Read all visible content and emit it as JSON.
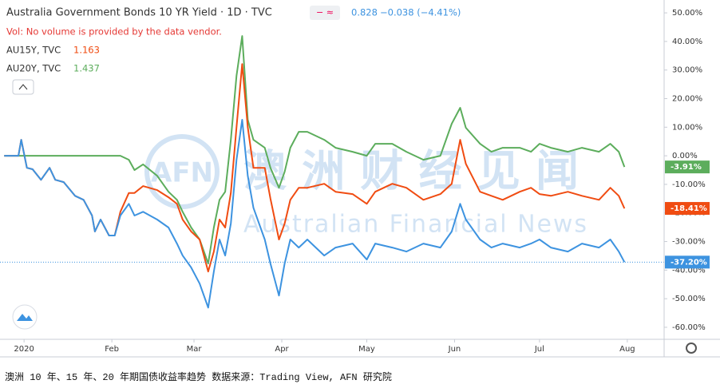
{
  "chart_data": {
    "type": "line",
    "x": [
      -6,
      -1,
      0,
      2,
      4,
      7,
      10,
      12,
      15,
      19,
      22,
      25,
      26,
      28,
      31,
      33,
      35,
      38,
      40,
      43,
      48,
      52,
      55,
      57,
      60,
      63,
      66,
      68,
      70,
      72,
      74,
      76,
      78,
      80,
      82,
      86,
      88,
      91,
      93,
      95,
      98,
      101,
      107,
      111,
      117,
      122,
      125,
      131,
      136,
      142,
      148,
      152,
      155,
      157,
      162,
      166,
      170,
      176,
      180,
      183,
      187,
      193,
      198,
      204,
      208,
      211,
      213
    ],
    "xlim": [
      -7.5,
      227
    ],
    "xticks": [
      {
        "value": 1,
        "label": "2020"
      },
      {
        "value": 32,
        "label": "Feb"
      },
      {
        "value": 61,
        "label": "Mar"
      },
      {
        "value": 92,
        "label": "Apr"
      },
      {
        "value": 122,
        "label": "May"
      },
      {
        "value": 153,
        "label": "Jun"
      },
      {
        "value": 183,
        "label": "Jul"
      },
      {
        "value": 214,
        "label": "Aug"
      }
    ],
    "ylim": [
      -64.2,
      54.5
    ],
    "yticks": [
      {
        "value": 50,
        "label": "50.00%"
      },
      {
        "value": 40,
        "label": "40.00%"
      },
      {
        "value": 30,
        "label": "30.00%"
      },
      {
        "value": 20,
        "label": "20.00%"
      },
      {
        "value": 10,
        "label": "10.00%"
      },
      {
        "value": 0,
        "label": "0.00%"
      },
      {
        "value": -10,
        "label": "-10.00%"
      },
      {
        "value": -20,
        "label": "-20.00%"
      },
      {
        "value": -30,
        "label": "-30.00%"
      },
      {
        "value": -40,
        "label": "-40.00%"
      },
      {
        "value": -50,
        "label": "-50.00%"
      },
      {
        "value": -60,
        "label": "-60.00%"
      }
    ],
    "grid": false,
    "note": "Vol: No volume is provided by the data vendor.",
    "series": [
      {
        "name": "Australia Government Bonds 10 YR Yield · 1D · TVC",
        "header_value": "0.828",
        "change": "−0.038 (−4.41%)",
        "color": "#3d93e0",
        "values": [
          0,
          0,
          5.6,
          -4.2,
          -4.7,
          -8.4,
          -4.2,
          -8.4,
          -9.2,
          -14.0,
          -15.4,
          -20.9,
          -26.5,
          -22.3,
          -27.9,
          -27.9,
          -20.9,
          -16.8,
          -20.9,
          -19.6,
          -22.3,
          -25.1,
          -30.7,
          -34.9,
          -39.1,
          -44.7,
          -53.1,
          -40.5,
          -29.3,
          -34.9,
          -23.7,
          -1.4,
          12.6,
          -7.0,
          -18.2,
          -29.3,
          -37.7,
          -48.9,
          -37.7,
          -29.3,
          -32.1,
          -29.3,
          -34.9,
          -32.1,
          -30.7,
          -36.3,
          -30.7,
          -32.1,
          -33.5,
          -30.7,
          -32.1,
          -26.5,
          -16.8,
          -22.3,
          -29.3,
          -32.1,
          -30.7,
          -32.1,
          -30.7,
          -29.3,
          -32.1,
          -33.5,
          -30.7,
          -32.1,
          -29.3,
          -33.5,
          -37.2
        ],
        "last_value_label": {
          "value": -37.2,
          "label": "-37.20%"
        }
      },
      {
        "name": "AU15Y, TVC",
        "header_value": "1.163",
        "color": "#f04c12",
        "values": [
          0,
          0,
          5.6,
          -4.2,
          -4.7,
          -8.4,
          -4.2,
          -8.4,
          -9.2,
          -14.0,
          -15.4,
          -20.9,
          -26.5,
          -22.3,
          -27.9,
          -27.9,
          -19.6,
          -13,
          -13,
          -10.6,
          -12,
          -14.5,
          -16.8,
          -22.3,
          -26.5,
          -29.3,
          -40.5,
          -33.5,
          -22.3,
          -25.1,
          -13,
          10,
          32.1,
          10,
          -4.2,
          -4.2,
          -15,
          -29.3,
          -23.7,
          -15.4,
          -11.2,
          -11.2,
          -9.8,
          -12.6,
          -13.4,
          -16.8,
          -12.6,
          -9.8,
          -11.2,
          -15.4,
          -13.4,
          -9.8,
          5.6,
          -2.8,
          -12.6,
          -14,
          -15.4,
          -12.6,
          -11.2,
          -13.4,
          -14,
          -12.6,
          -14,
          -15.4,
          -11.2,
          -14,
          -18.41
        ],
        "last_value_label": {
          "value": -18.41,
          "label": "-18.41%"
        }
      },
      {
        "name": "AU20Y, TVC",
        "header_value": "1.437",
        "color": "#5cad5c",
        "values": [
          0,
          0,
          0,
          0,
          0,
          0,
          0,
          0,
          0,
          0,
          0,
          0,
          0,
          0,
          0,
          0,
          0,
          -1.4,
          -5,
          -3,
          -7,
          -12.6,
          -15.4,
          -19.6,
          -25.1,
          -29.3,
          -37.7,
          -25.1,
          -15.4,
          -12.6,
          5.6,
          28,
          41.9,
          12.6,
          5.6,
          2.8,
          -4.2,
          -11.2,
          -5.6,
          2.8,
          8.4,
          8.4,
          5.6,
          2.8,
          1.4,
          0,
          4.2,
          4.2,
          1.4,
          -1.4,
          0,
          11.2,
          16.8,
          9.8,
          4.2,
          1.4,
          2.8,
          2.8,
          1.4,
          4.2,
          2.8,
          1.4,
          2.8,
          1.4,
          4.2,
          1.4,
          -3.91
        ],
        "last_value_label": {
          "value": -3.91,
          "label": "-3.91%"
        }
      }
    ]
  },
  "watermark": {
    "logo": "AFN",
    "title": "澳洲财经见闻",
    "subtitle": "Australian Financial News"
  },
  "caption": "澳洲 10 年、15 年、20 年期国债收益率趋势   数据来源：Trading View, AFN 研究院"
}
